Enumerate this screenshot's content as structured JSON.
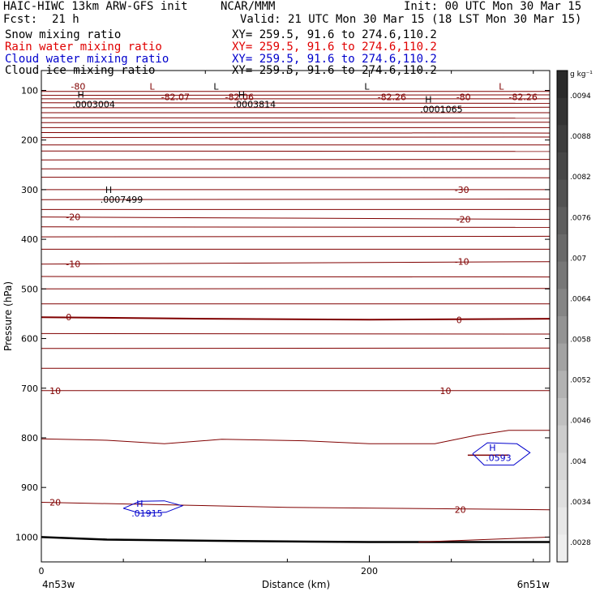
{
  "header": {
    "title_left": "HAIC-HIWC 13km ARW-GFS init",
    "title_center": "NCAR/MMM",
    "init": "Init: 00 UTC Mon 30 Mar 15",
    "fcst_label": "Fcst:",
    "fcst_value": "21 h",
    "valid": "Valid: 21 UTC Mon 30 Mar 15 (18 LST Mon 30 Mar 15)"
  },
  "fields": [
    {
      "name": "Snow mixing ratio",
      "xy": "XY= 259.5, 91.6 to 274.6,110.2",
      "color": "#000000"
    },
    {
      "name": "Rain water mixing ratio",
      "xy": "XY= 259.5, 91.6 to 274.6,110.2",
      "color": "#e00000"
    },
    {
      "name": "Cloud water mixing ratio",
      "xy": "XY= 259.5, 91.6 to 274.6,110.2",
      "color": "#0000cc"
    },
    {
      "name": "Cloud ice mixing ratio",
      "xy": "XY= 259.5, 91.6 to 274.6,110.2",
      "color": "#000000"
    }
  ],
  "chart_data": {
    "type": "line",
    "xlabel": "Distance (km)",
    "ylabel": "Pressure (hPa)",
    "x_range": [
      0,
      310
    ],
    "y_range": [
      1050,
      60
    ],
    "x_ticks": [
      0,
      200
    ],
    "x_minor_ticks": [
      50,
      100,
      150,
      250,
      300
    ],
    "y_ticks": [
      100,
      200,
      300,
      400,
      500,
      600,
      700,
      800,
      900,
      1000
    ],
    "x_endpoint_labels": [
      "4n53w",
      "6n51w"
    ],
    "temperature_contours": [
      {
        "label": "-80",
        "points": [
          [
            0,
            102
          ],
          [
            310,
            102
          ]
        ]
      },
      {
        "label": "-30",
        "points": [
          [
            0,
            300
          ],
          [
            310,
            300
          ]
        ]
      },
      {
        "label": "-20",
        "points": [
          [
            0,
            355
          ],
          [
            310,
            360
          ]
        ]
      },
      {
        "label": "-10",
        "points": [
          [
            0,
            450
          ],
          [
            310,
            445
          ]
        ]
      },
      {
        "label": "0",
        "points": [
          [
            0,
            557
          ],
          [
            100,
            560
          ],
          [
            200,
            562
          ],
          [
            310,
            560
          ]
        ],
        "bold": true
      },
      {
        "label": "10",
        "points": [
          [
            0,
            705
          ],
          [
            310,
            705
          ]
        ]
      },
      {
        "label": "20",
        "points": [
          [
            0,
            930
          ],
          [
            150,
            940
          ],
          [
            310,
            945
          ]
        ]
      }
    ],
    "isotherm_pressures": [
      110,
      117,
      125,
      135,
      145,
      155,
      165,
      175,
      185,
      195,
      210,
      222,
      240,
      258,
      275,
      320,
      340,
      375,
      395,
      420,
      475,
      500,
      530,
      590,
      620,
      660
    ],
    "contour_800": [
      [
        0,
        802
      ],
      [
        40,
        805
      ],
      [
        75,
        812
      ],
      [
        110,
        803
      ],
      [
        160,
        806
      ],
      [
        200,
        812
      ],
      [
        240,
        812
      ],
      [
        265,
        795
      ],
      [
        285,
        785
      ],
      [
        310,
        785
      ]
    ],
    "contour_1000": [
      [
        0,
        1000
      ],
      [
        40,
        1005
      ],
      [
        120,
        1008
      ],
      [
        200,
        1010
      ],
      [
        310,
        1010
      ]
    ],
    "contour_1000b": [
      [
        230,
        1010
      ],
      [
        310,
        1000
      ]
    ],
    "labels": [
      {
        "text": "-80",
        "x": 18,
        "p": 92,
        "color": "#800000"
      },
      {
        "text": "L",
        "x": 66,
        "p": 92,
        "color": "#800000"
      },
      {
        "text": "-82.07",
        "x": 73,
        "p": 113,
        "color": "#800000"
      },
      {
        "text": "L",
        "x": 105,
        "p": 92,
        "color": "#000000"
      },
      {
        "text": "-82.06",
        "x": 112,
        "p": 113,
        "color": "#800000"
      },
      {
        "text": "L",
        "x": 197,
        "p": 92,
        "color": "#000000"
      },
      {
        "text": "-82.26",
        "x": 205,
        "p": 113,
        "color": "#800000"
      },
      {
        "text": "-80",
        "x": 253,
        "p": 113,
        "color": "#800000"
      },
      {
        "text": "L",
        "x": 279,
        "p": 92,
        "color": "#800000"
      },
      {
        "text": "-82.26",
        "x": 285,
        "p": 113,
        "color": "#800000"
      },
      {
        "text": "H",
        "x": 22,
        "p": 108,
        "color": "#000000"
      },
      {
        "text": ".0003004",
        "x": 19,
        "p": 128,
        "color": "#000000"
      },
      {
        "text": "H",
        "x": 120,
        "p": 108,
        "color": "#000000"
      },
      {
        "text": ".0003814",
        "x": 117,
        "p": 128,
        "color": "#000000"
      },
      {
        "text": "H",
        "x": 234,
        "p": 118,
        "color": "#000000"
      },
      {
        "text": ".0001065",
        "x": 231,
        "p": 138,
        "color": "#000000"
      },
      {
        "text": "H",
        "x": 39,
        "p": 300,
        "color": "#000000"
      },
      {
        "text": ".0007499",
        "x": 36,
        "p": 320,
        "color": "#000000"
      },
      {
        "text": "-30",
        "x": 252,
        "p": 300,
        "color": "#800000"
      },
      {
        "text": "-20",
        "x": 15,
        "p": 355,
        "color": "#800000"
      },
      {
        "text": "-20",
        "x": 253,
        "p": 360,
        "color": "#800000"
      },
      {
        "text": "-10",
        "x": 15,
        "p": 450,
        "color": "#800000"
      },
      {
        "text": "-10",
        "x": 252,
        "p": 445,
        "color": "#800000"
      },
      {
        "text": "0",
        "x": 15,
        "p": 557,
        "color": "#800000"
      },
      {
        "text": "0",
        "x": 253,
        "p": 562,
        "color": "#800000"
      },
      {
        "text": "10",
        "x": 5,
        "p": 705,
        "color": "#800000"
      },
      {
        "text": "10",
        "x": 243,
        "p": 705,
        "color": "#800000"
      },
      {
        "text": "20",
        "x": 5,
        "p": 930,
        "color": "#800000"
      },
      {
        "text": "20",
        "x": 252,
        "p": 945,
        "color": "#800000"
      },
      {
        "text": "H",
        "x": 58,
        "p": 932,
        "color": "#0000cc"
      },
      {
        "text": ".01915",
        "x": 55,
        "p": 952,
        "color": "#0000cc"
      },
      {
        "text": "H",
        "x": 273,
        "p": 820,
        "color": "#0000cc"
      },
      {
        "text": ".0593",
        "x": 271,
        "p": 840,
        "color": "#0000cc"
      }
    ],
    "cloud_water_blobs": [
      [
        [
          50,
          942
        ],
        [
          60,
          928
        ],
        [
          75,
          927
        ],
        [
          86,
          937
        ],
        [
          76,
          950
        ],
        [
          60,
          952
        ],
        [
          50,
          942
        ]
      ],
      [
        [
          263,
          832
        ],
        [
          272,
          810
        ],
        [
          290,
          812
        ],
        [
          298,
          830
        ],
        [
          288,
          855
        ],
        [
          270,
          855
        ],
        [
          263,
          832
        ]
      ]
    ],
    "colorbar": {
      "unit": "g kg⁻¹",
      "levels": [
        ".0094",
        ".0088",
        ".0082",
        ".0076",
        ".007",
        ".0064",
        ".0058",
        ".0052",
        ".0046",
        ".004",
        ".0034",
        ".0028"
      ],
      "colors": [
        "#2a2a2a",
        "#333333",
        "#3d3d3d",
        "#474747",
        "#525252",
        "#5e5e5e",
        "#6a6a6a",
        "#777777",
        "#858585",
        "#939393",
        "#a2a2a2",
        "#b2b2b2",
        "#c0c0c0",
        "#cccccc",
        "#d6d6d6",
        "#dfdfdf",
        "#e7e7e7",
        "#eeeeee"
      ]
    }
  }
}
